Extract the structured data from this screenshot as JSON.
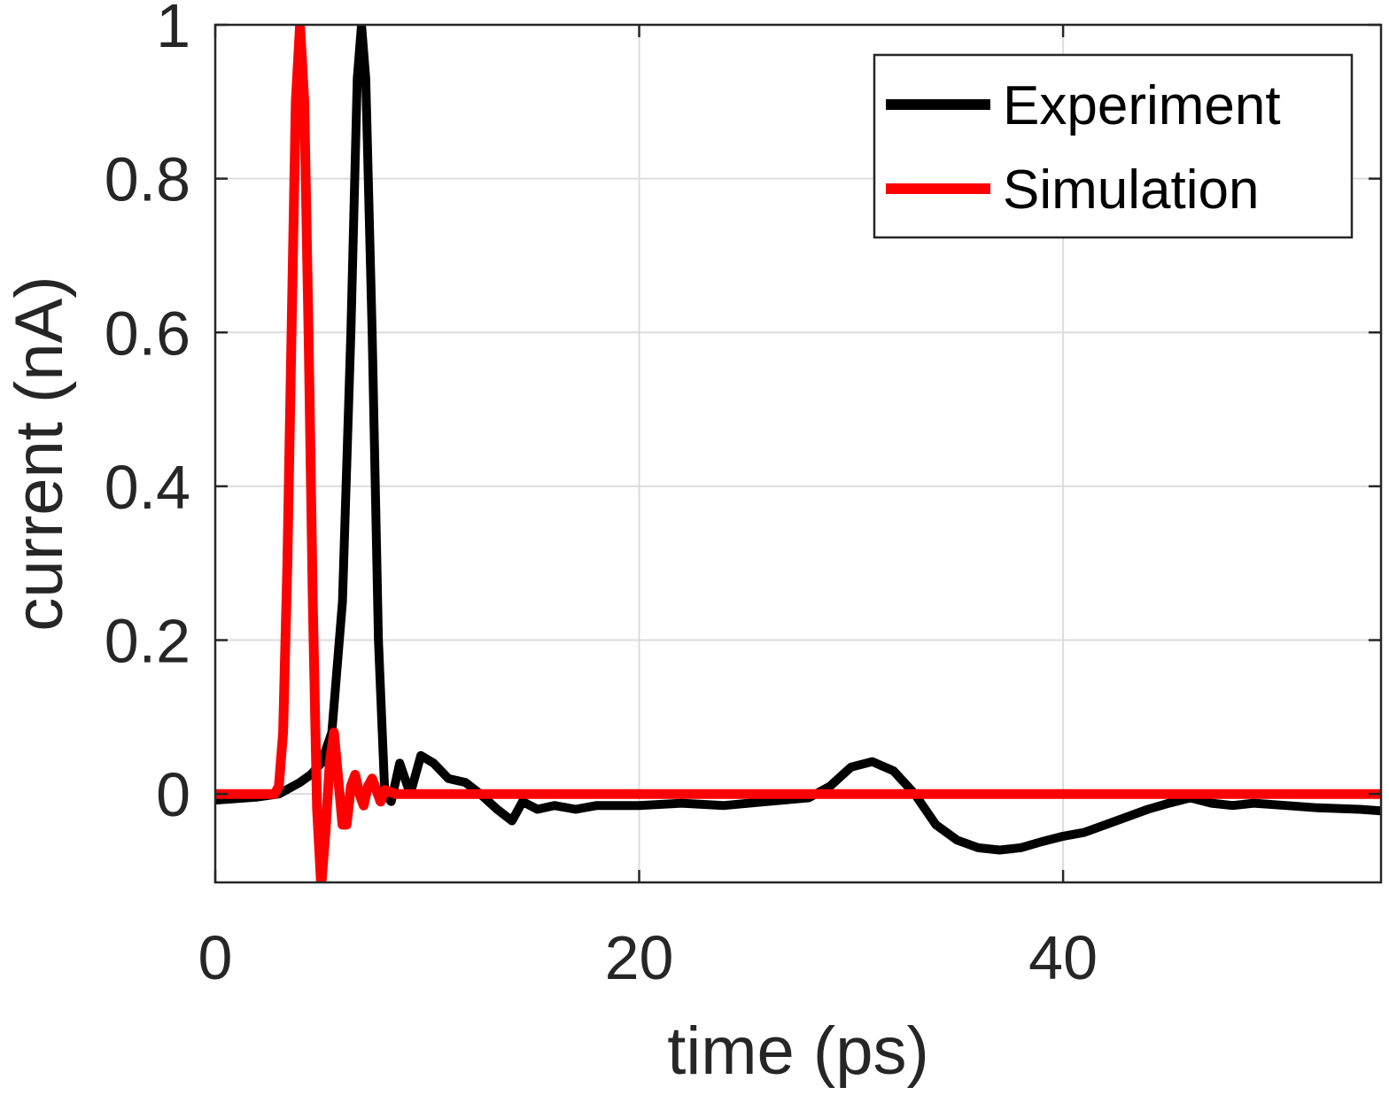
{
  "chart_data": {
    "type": "line",
    "title": "",
    "xlabel": "time (ps)",
    "ylabel": "current (nA)",
    "xlim": [
      0,
      55
    ],
    "ylim": [
      -0.115,
      1
    ],
    "xticks": [
      0,
      20,
      40
    ],
    "yticks": [
      0,
      0.2,
      0.4,
      0.6,
      0.8,
      1
    ],
    "xtick_labels": [
      "0",
      "20",
      "40"
    ],
    "ytick_labels": [
      "0",
      "0.2",
      "0.4",
      "0.6",
      "0.8",
      "1"
    ],
    "grid": true,
    "legend_position": "top-right",
    "series": [
      {
        "name": "Experiment",
        "color": "#000000",
        "points": [
          [
            0,
            -0.008
          ],
          [
            1,
            -0.006
          ],
          [
            2,
            -0.004
          ],
          [
            3,
            0.0
          ],
          [
            4,
            0.015
          ],
          [
            4.5,
            0.025
          ],
          [
            5,
            0.04
          ],
          [
            5.5,
            0.08
          ],
          [
            6,
            0.25
          ],
          [
            6.4,
            0.6
          ],
          [
            6.7,
            0.93
          ],
          [
            6.9,
            1.0
          ],
          [
            7.1,
            0.93
          ],
          [
            7.4,
            0.6
          ],
          [
            7.7,
            0.2
          ],
          [
            8.0,
            0.0
          ],
          [
            8.3,
            -0.01
          ],
          [
            8.7,
            0.04
          ],
          [
            9.2,
            0.0
          ],
          [
            9.7,
            0.05
          ],
          [
            10.3,
            0.04
          ],
          [
            11,
            0.02
          ],
          [
            11.8,
            0.015
          ],
          [
            12.5,
            0.0
          ],
          [
            13.3,
            -0.02
          ],
          [
            14,
            -0.035
          ],
          [
            14.5,
            -0.01
          ],
          [
            15.2,
            -0.02
          ],
          [
            16,
            -0.015
          ],
          [
            17,
            -0.02
          ],
          [
            18,
            -0.015
          ],
          [
            19,
            -0.015
          ],
          [
            20,
            -0.015
          ],
          [
            22,
            -0.012
          ],
          [
            24,
            -0.015
          ],
          [
            26,
            -0.01
          ],
          [
            28,
            -0.005
          ],
          [
            29,
            0.01
          ],
          [
            30,
            0.035
          ],
          [
            31,
            0.042
          ],
          [
            32,
            0.03
          ],
          [
            33,
            0.0
          ],
          [
            34,
            -0.04
          ],
          [
            35,
            -0.06
          ],
          [
            36,
            -0.07
          ],
          [
            37,
            -0.073
          ],
          [
            38,
            -0.07
          ],
          [
            39,
            -0.062
          ],
          [
            40,
            -0.055
          ],
          [
            41,
            -0.05
          ],
          [
            42,
            -0.04
          ],
          [
            43,
            -0.03
          ],
          [
            44,
            -0.02
          ],
          [
            45,
            -0.012
          ],
          [
            46,
            -0.005
          ],
          [
            47,
            -0.012
          ],
          [
            48,
            -0.015
          ],
          [
            49,
            -0.012
          ],
          [
            50,
            -0.014
          ],
          [
            52,
            -0.018
          ],
          [
            54,
            -0.02
          ],
          [
            55,
            -0.022
          ]
        ]
      },
      {
        "name": "Simulation",
        "color": "#ff0000",
        "points": [
          [
            0,
            0.0
          ],
          [
            2.8,
            0.0
          ],
          [
            3.0,
            0.01
          ],
          [
            3.2,
            0.08
          ],
          [
            3.4,
            0.3
          ],
          [
            3.6,
            0.6
          ],
          [
            3.8,
            0.9
          ],
          [
            4.0,
            1.0
          ],
          [
            4.2,
            0.9
          ],
          [
            4.4,
            0.6
          ],
          [
            4.6,
            0.25
          ],
          [
            4.8,
            -0.02
          ],
          [
            5.0,
            -0.12
          ],
          [
            5.2,
            -0.05
          ],
          [
            5.4,
            0.04
          ],
          [
            5.6,
            0.08
          ],
          [
            5.8,
            0.02
          ],
          [
            6.0,
            -0.04
          ],
          [
            6.2,
            -0.04
          ],
          [
            6.4,
            0.01
          ],
          [
            6.6,
            0.025
          ],
          [
            6.8,
            0.0
          ],
          [
            7.0,
            -0.015
          ],
          [
            7.2,
            0.01
          ],
          [
            7.4,
            0.02
          ],
          [
            7.6,
            0.005
          ],
          [
            7.8,
            -0.01
          ],
          [
            8.0,
            0.005
          ],
          [
            8.5,
            0.0
          ],
          [
            55,
            0.0
          ]
        ]
      }
    ]
  }
}
